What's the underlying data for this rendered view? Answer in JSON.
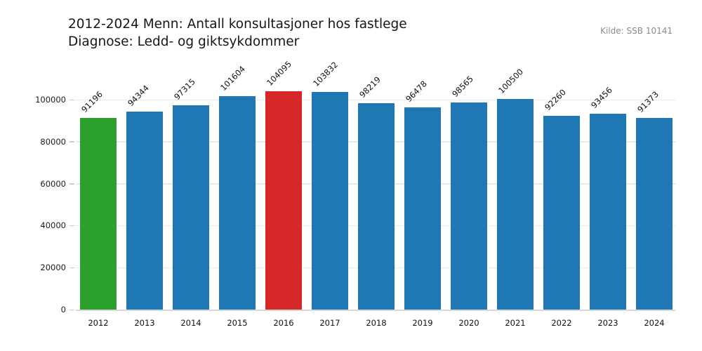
{
  "title": {
    "line1": "2012-2024 Menn: Antall konsultasjoner hos fastlege",
    "line2": "Diagnose: Ledd- og giktsykdommer"
  },
  "source": "Kilde: SSB 10141",
  "chart_data": {
    "type": "bar",
    "title": "2012-2024 Menn: Antall konsultasjoner hos fastlege\nDiagnose: Ledd- og giktsykdommer",
    "source": "Kilde: SSB 10141",
    "categories": [
      "2012",
      "2013",
      "2014",
      "2015",
      "2016",
      "2017",
      "2018",
      "2019",
      "2020",
      "2021",
      "2022",
      "2023",
      "2024"
    ],
    "values": [
      91196,
      94344,
      97315,
      101604,
      104095,
      103832,
      98219,
      96478,
      98565,
      100500,
      92260,
      93456,
      91373
    ],
    "bar_colors": [
      "#2ca02c",
      "#1f77b4",
      "#1f77b4",
      "#1f77b4",
      "#d62728",
      "#1f77b4",
      "#1f77b4",
      "#1f77b4",
      "#1f77b4",
      "#1f77b4",
      "#1f77b4",
      "#1f77b4",
      "#1f77b4"
    ],
    "value_labels": [
      "91196",
      "94344",
      "97315",
      "101604",
      "104095",
      "103832",
      "98219",
      "96478",
      "98565",
      "100500",
      "92260",
      "93456",
      "91373"
    ],
    "value_label_rotation": 45,
    "xlabel": "",
    "ylabel": "",
    "yticks": [
      0,
      20000,
      40000,
      60000,
      80000,
      100000
    ],
    "ylim": [
      0,
      119000
    ],
    "grid": "horizontal",
    "legend": "none",
    "colors": {
      "default_bar": "#1f77b4",
      "first_bar_highlight": "#2ca02c",
      "max_bar_highlight": "#d62728",
      "gridline": "#ebebeb",
      "baseline": "#d9d9d9",
      "text": "#111111",
      "source_text": "#8a8a8a"
    }
  }
}
